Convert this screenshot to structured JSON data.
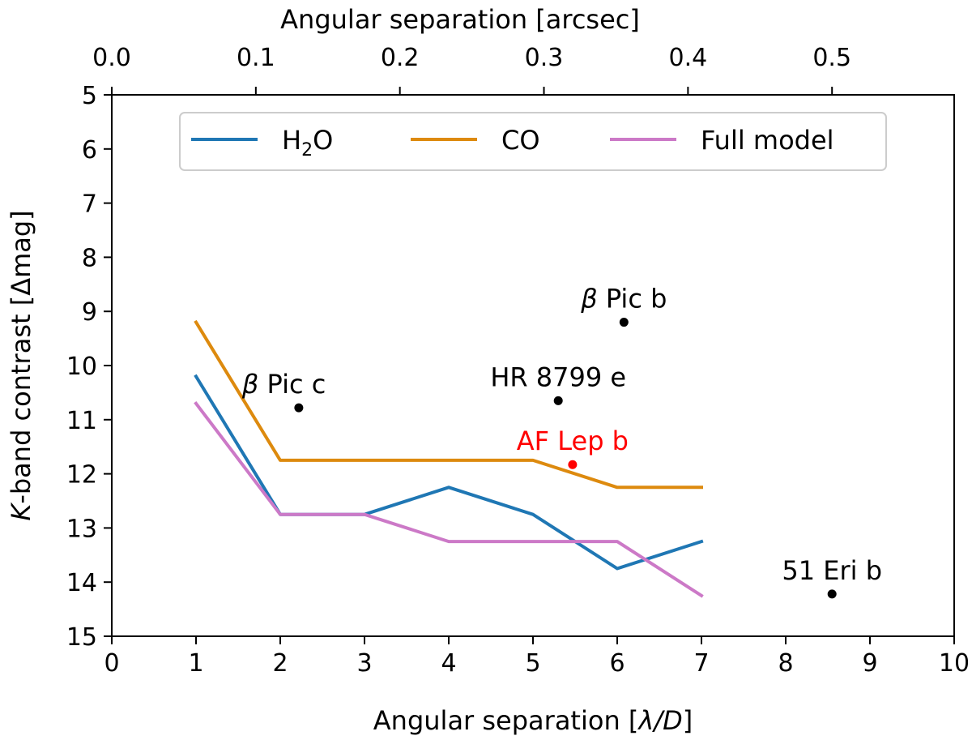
{
  "chart_data": {
    "type": "line",
    "xlabel_prefix": "Angular separation [",
    "xlabel_math": "λ/D",
    "xlabel_suffix": "]",
    "ylabel_math": "K",
    "ylabel_rest": "-band contrast [Δmag]",
    "top_xlabel": "Angular separation [arcsec]",
    "xlim": [
      0,
      10
    ],
    "ylim": [
      15,
      5
    ],
    "y_inverted": true,
    "grid": false,
    "legend_position": "upper-center",
    "x_ticks": [
      "0",
      "1",
      "2",
      "3",
      "4",
      "5",
      "6",
      "7",
      "8",
      "9",
      "10"
    ],
    "y_ticks": [
      "5",
      "6",
      "7",
      "8",
      "9",
      "10",
      "11",
      "12",
      "13",
      "14",
      "15"
    ],
    "top_ticks": [
      {
        "label": "0.0",
        "x_lambda_d": 0.0
      },
      {
        "label": "0.1",
        "x_lambda_d": 1.71
      },
      {
        "label": "0.2",
        "x_lambda_d": 3.42
      },
      {
        "label": "0.3",
        "x_lambda_d": 5.13
      },
      {
        "label": "0.4",
        "x_lambda_d": 6.84
      },
      {
        "label": "0.5",
        "x_lambda_d": 8.55
      }
    ],
    "series": [
      {
        "name": "H2O",
        "legend_main": "H",
        "legend_sub": "2",
        "legend_tail": "O",
        "color": "#1f77b4",
        "x": [
          1,
          2,
          3,
          4,
          5,
          6,
          7
        ],
        "y": [
          10.2,
          12.75,
          12.75,
          12.25,
          12.75,
          13.75,
          13.25
        ]
      },
      {
        "name": "CO",
        "legend_main": "CO",
        "legend_sub": "",
        "legend_tail": "",
        "color": "#dd8a0e",
        "x": [
          1,
          2,
          3,
          4,
          5,
          6,
          7
        ],
        "y": [
          9.2,
          11.75,
          11.75,
          11.75,
          11.75,
          12.25,
          12.25
        ]
      },
      {
        "name": "Full model",
        "legend_main": "Full model",
        "legend_sub": "",
        "legend_tail": "",
        "color": "#cc79c7",
        "x": [
          1,
          2,
          3,
          4,
          5,
          6,
          7
        ],
        "y": [
          10.7,
          12.75,
          12.75,
          13.25,
          13.25,
          13.25,
          14.25
        ]
      }
    ],
    "annotations": [
      {
        "greek": "β",
        "text": " Pic b",
        "x": 6.08,
        "y": 9.2,
        "color": "#000000",
        "label_anchor": "center"
      },
      {
        "greek": "β",
        "text": " Pic c",
        "x": 2.22,
        "y": 10.78,
        "color": "#000000",
        "label_anchor": "left"
      },
      {
        "greek": "",
        "text": "HR 8799 e",
        "x": 5.3,
        "y": 10.65,
        "color": "#000000",
        "label_anchor": "center"
      },
      {
        "greek": "",
        "text": "AF Lep b",
        "x": 5.47,
        "y": 11.83,
        "color": "#ff0000",
        "label_anchor": "center"
      },
      {
        "greek": "",
        "text": "51 Eri b",
        "x": 8.55,
        "y": 14.22,
        "color": "#000000",
        "label_anchor": "center"
      }
    ]
  }
}
